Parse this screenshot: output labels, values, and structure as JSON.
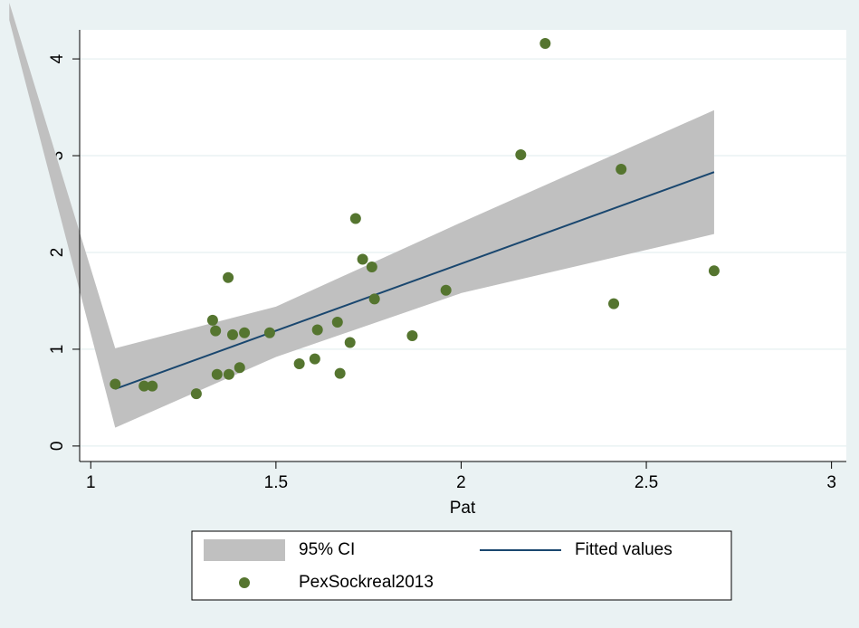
{
  "chart_data": {
    "type": "scatter",
    "x_label": "Pat",
    "xlim": [
      0.97,
      3.04
    ],
    "xticks": [
      1,
      1.5,
      2,
      2.5,
      3
    ],
    "ylim": [
      -0.16,
      4.3
    ],
    "yticks": [
      0,
      1,
      2,
      3,
      4
    ],
    "grid": true,
    "series": [
      {
        "name": "95% CI",
        "type": "area",
        "color": "#c0c0c0",
        "x": [
          0.78,
          1.066,
          1.5,
          2,
          2.683
        ],
        "lower": [
          4.4,
          0.19,
          0.92,
          1.58,
          2.19
        ],
        "upper": [
          4.58,
          1.01,
          1.44,
          2.31,
          3.47
        ]
      },
      {
        "name": "Fitted values",
        "type": "line",
        "color": "#1a476f",
        "x": [
          1.066,
          2.683
        ],
        "values": [
          0.59,
          2.83
        ]
      },
      {
        "name": "PexSockreal2013",
        "type": "scatter",
        "color": "#55752f",
        "x": [
          1.066,
          1.144,
          1.166,
          1.285,
          1.329,
          1.337,
          1.341,
          1.371,
          1.373,
          1.383,
          1.402,
          1.415,
          1.483,
          1.563,
          1.605,
          1.612,
          1.666,
          1.673,
          1.7,
          1.715,
          1.734,
          1.759,
          1.766,
          1.868,
          1.959,
          2.161,
          2.227,
          2.412,
          2.432,
          2.683
        ],
        "values": [
          0.64,
          0.62,
          0.62,
          0.54,
          1.3,
          1.19,
          0.74,
          1.74,
          0.74,
          1.15,
          0.81,
          1.17,
          1.17,
          0.85,
          0.9,
          1.2,
          1.28,
          0.75,
          1.07,
          2.35,
          1.93,
          1.85,
          1.52,
          1.14,
          1.61,
          3.01,
          4.16,
          1.47,
          2.86,
          1.81
        ]
      }
    ]
  }
}
